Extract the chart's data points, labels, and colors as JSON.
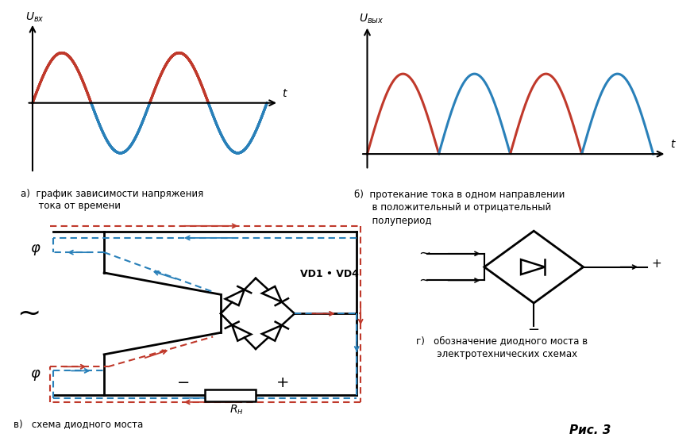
{
  "bg_color": "#ffffff",
  "red_color": "#c0392b",
  "blue_color": "#2980b9",
  "black_color": "#000000",
  "label_a": "а)  график зависимости напряжения\n      тока от времени",
  "label_b1": "б)  протекание тока в одном направлении",
  "label_b2": "      в положительный и отрицательный",
  "label_b3": "      полупериод",
  "label_v": "в)   схема диодного моста",
  "label_g1": "г)   обозначение диодного моста в",
  "label_g2": "       электротехнических схемах",
  "fig_label": "Рис. 3",
  "vd_label": "VD1 • VD4"
}
